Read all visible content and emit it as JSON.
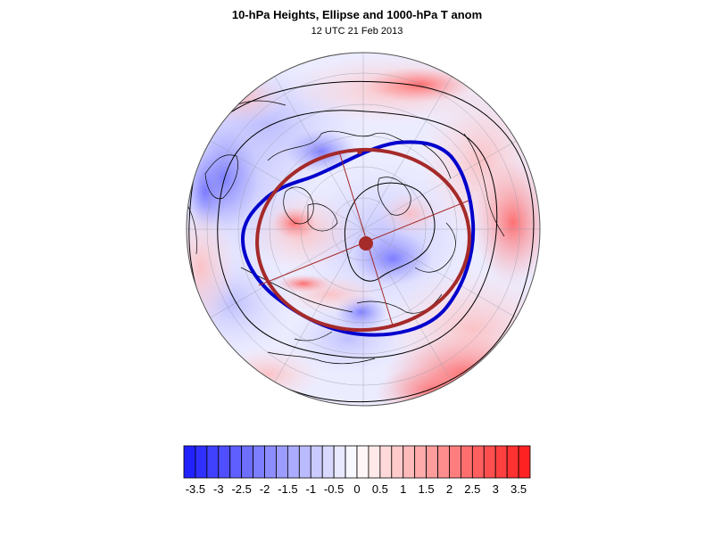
{
  "header": {
    "title": "10-hPa Heights, Ellipse and 1000-hPa T anom",
    "subtitle": "12 UTC 21 Feb 2013"
  },
  "colors": {
    "min": "#1a1aff",
    "mid": "#ffffff",
    "max": "#ff1a1a",
    "ellipse": "#a52a2a",
    "polar_vortex_contour": "#0000cc",
    "height_contours": "#000000"
  },
  "colorbar": {
    "levels": [
      -3.75,
      -3.5,
      -3.25,
      -3,
      -2.75,
      -2.5,
      -2.25,
      -2,
      -1.75,
      -1.5,
      -1.25,
      -1,
      -0.75,
      -0.5,
      -0.25,
      0,
      0.25,
      0.5,
      0.75,
      1,
      1.25,
      1.5,
      1.75,
      2,
      2.25,
      2.5,
      2.75,
      3,
      3.25,
      3.5,
      3.75
    ],
    "labels": [
      "-3.5",
      "-3",
      "-2.5",
      "-2",
      "-1.5",
      "-1",
      "-0.5",
      "0",
      "0.5",
      "1",
      "1.5",
      "2",
      "2.5",
      "3",
      "3.5"
    ]
  },
  "map": {
    "projection": "polar stereographic, North Pole",
    "features": [
      "graticule",
      "coastlines",
      "10-hPa height contours",
      "polar vortex edge contour",
      "fitted ellipse",
      "ellipse axes",
      "vortex centroid"
    ]
  }
}
